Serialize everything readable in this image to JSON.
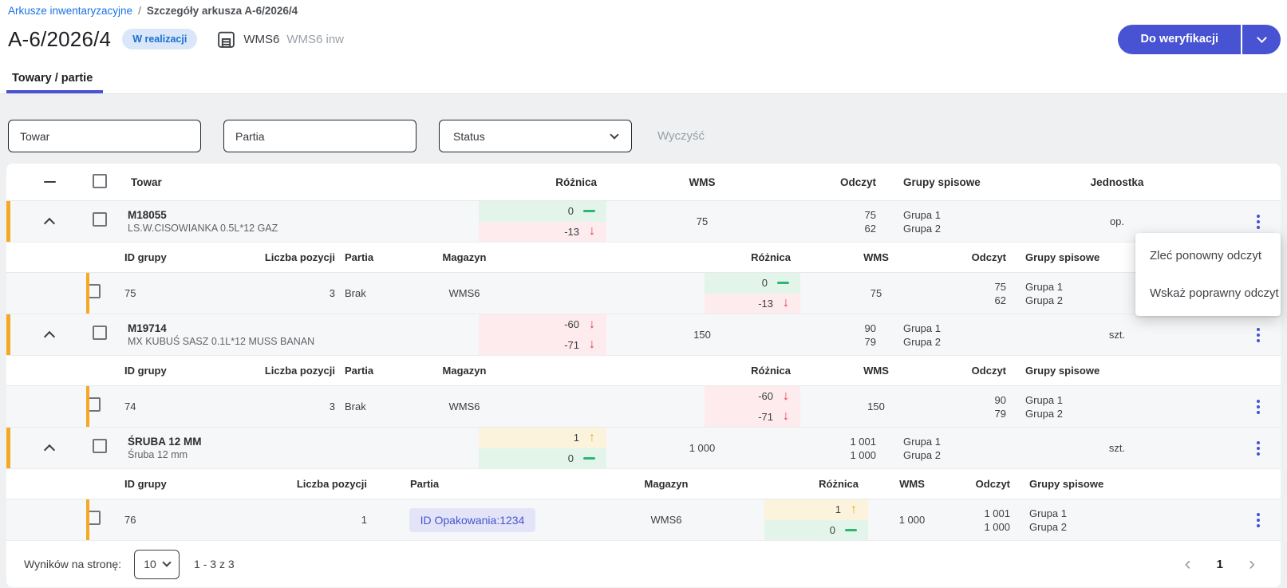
{
  "breadcrumb": {
    "link": "Arkusze inwentaryzacyjne",
    "separator": "/",
    "current": "Szczegóły arkusza A-6/2026/4"
  },
  "header": {
    "title": "A-6/2026/4",
    "status_badge": "W realizacji",
    "warehouse_code": "WMS6",
    "warehouse_name": "WMS6 inw",
    "primary_action": "Do weryfikacji"
  },
  "tab": {
    "label": "Towary / partie"
  },
  "filters": {
    "towar_placeholder": "Towar",
    "partia_placeholder": "Partia",
    "status_label": "Status",
    "clear_label": "Wyczyść"
  },
  "table": {
    "columns": {
      "towar": "Towar",
      "roznica": "Różnica",
      "wms": "WMS",
      "odczyt": "Odczyt",
      "grupy": "Grupy spisowe",
      "jednostka": "Jednostka"
    },
    "sub_columns": {
      "id_grupy": "ID grupy",
      "liczba": "Liczba pozycji",
      "partia": "Partia",
      "magazyn": "Magazyn",
      "roznica": "Różnica",
      "wms": "WMS",
      "odczyt": "Odczyt",
      "grupy": "Grupy spisowe"
    },
    "groups": [
      {
        "code": "M18055",
        "name": "LS.W.CISOWIANKA 0.5L*12 GAZ",
        "diff": [
          {
            "value": "0",
            "dir": "flat"
          },
          {
            "value": "-13",
            "dir": "down"
          }
        ],
        "wms": "75",
        "odczyt": [
          "75",
          "62"
        ],
        "grupy": [
          "Grupa 1",
          "Grupa 2"
        ],
        "jednostka": "op.",
        "sub_layout": "a",
        "sub": {
          "id_grupy": "75",
          "liczba_pozycji": "3",
          "partia": "Brak",
          "partia_chip": false,
          "magazyn": "WMS6",
          "diff": [
            {
              "value": "0",
              "dir": "flat"
            },
            {
              "value": "-13",
              "dir": "down"
            }
          ],
          "wms": "75",
          "odczyt": [
            "75",
            "62"
          ],
          "grupy": [
            "Grupa 1",
            "Grupa 2"
          ]
        }
      },
      {
        "code": "M19714",
        "name": "MX KUBUŚ SASZ 0.1L*12 MUSS BANAN",
        "diff": [
          {
            "value": "-60",
            "dir": "down"
          },
          {
            "value": "-71",
            "dir": "down"
          }
        ],
        "wms": "150",
        "odczyt": [
          "90",
          "79"
        ],
        "grupy": [
          "Grupa 1",
          "Grupa 2"
        ],
        "jednostka": "szt.",
        "sub_layout": "a",
        "sub": {
          "id_grupy": "74",
          "liczba_pozycji": "3",
          "partia": "Brak",
          "partia_chip": false,
          "magazyn": "WMS6",
          "diff": [
            {
              "value": "-60",
              "dir": "down"
            },
            {
              "value": "-71",
              "dir": "down"
            }
          ],
          "wms": "150",
          "odczyt": [
            "90",
            "79"
          ],
          "grupy": [
            "Grupa 1",
            "Grupa 2"
          ]
        }
      },
      {
        "code": "ŚRUBA 12 MM",
        "name": "Śruba 12 mm",
        "diff": [
          {
            "value": "1",
            "dir": "up"
          },
          {
            "value": "0",
            "dir": "flat"
          }
        ],
        "wms": "1 000",
        "odczyt": [
          "1 001",
          "1 000"
        ],
        "grupy": [
          "Grupa 1",
          "Grupa 2"
        ],
        "jednostka": "szt.",
        "sub_layout": "b",
        "sub": {
          "id_grupy": "76",
          "liczba_pozycji": "1",
          "partia": "ID Opakowania:1234",
          "partia_chip": true,
          "magazyn": "WMS6",
          "diff": [
            {
              "value": "1",
              "dir": "up"
            },
            {
              "value": "0",
              "dir": "flat"
            }
          ],
          "wms": "1 000",
          "odczyt": [
            "1 001",
            "1 000"
          ],
          "grupy": [
            "Grupa 1",
            "Grupa 2"
          ]
        }
      }
    ]
  },
  "context_menu": {
    "items": [
      "Zleć ponowny odczyt",
      "Wskaż poprawny odczyt"
    ]
  },
  "footer": {
    "per_page_label": "Wyników na stronę:",
    "per_page_value": "10",
    "range_text": "1 - 3 z 3",
    "page": "1",
    "prev_icon": "‹",
    "next_icon": "›"
  },
  "icons": {
    "down_arrow": "↓",
    "up_arrow": "↑",
    "warehouse_icon": "garage",
    "row_menu_icon": "kebab-vertical"
  },
  "colors": {
    "accent": "#4753d2",
    "link_blue": "#1a73e8",
    "badge_bg": "#d9e7f9",
    "badge_text": "#1b6fd0",
    "bar_orange": "#f6a723",
    "diff_green_bg": "#e3f5ea",
    "diff_green_icon": "#2bb673",
    "diff_red_bg": "#fdebed",
    "diff_red_icon": "#e63950",
    "diff_yellow_bg": "#fcf3dc",
    "diff_yellow_icon": "#f0a62e",
    "chip_bg": "#e4e4f8",
    "chip_text": "#4455cf"
  }
}
